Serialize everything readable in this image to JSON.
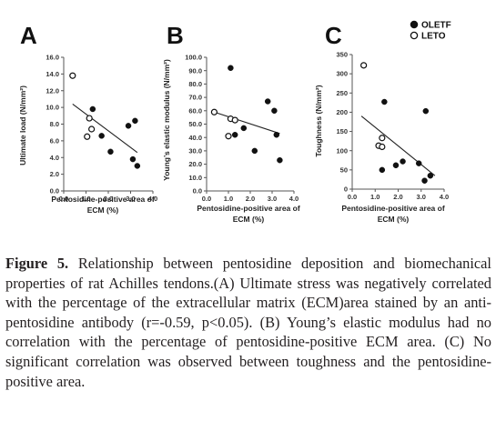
{
  "caption": {
    "label": "Figure 5.",
    "text": "Relationship between pentosidine deposition and biomechanical properties of rat Achilles tendons.(A) Ultimate stress was negatively correlated with the percentage of the extracellular matrix (ECM)area stained by an anti-pentosidine antibody (r=-0.59, p<0.05). (B) Young’s elastic modulus had no correlation with the percentage of pentosidine-positive ECM area. (C) No significant correlation was observed between toughness and the pentosidine-positive area."
  },
  "legend": [
    {
      "label": "OLETF",
      "marker": "filled"
    },
    {
      "label": "LETO",
      "marker": "open"
    }
  ],
  "colors": {
    "filled": "#111111",
    "trend": "#222222"
  },
  "chart_data": [
    {
      "panel": "A",
      "type": "scatter",
      "xlabel": "Pentosidine-positive area of ECM (%)",
      "ylabel": "Ultimate load (N/mm²)",
      "xlim": [
        0,
        4
      ],
      "ylim": [
        0,
        16
      ],
      "xticks": [
        "0.0",
        "1.0",
        "2.0",
        "3.0",
        "4.0"
      ],
      "yticks": [
        "0.0",
        "2.0",
        "4.0",
        "6.0",
        "8.0",
        "10.0",
        "12.0",
        "14.0",
        "16.0"
      ],
      "series": [
        {
          "name": "OLETF",
          "marker": "filled",
          "points": [
            [
              1.3,
              9.8
            ],
            [
              1.7,
              6.6
            ],
            [
              2.1,
              4.7
            ],
            [
              2.9,
              7.8
            ],
            [
              3.2,
              8.4
            ],
            [
              3.1,
              3.8
            ],
            [
              3.3,
              3.0
            ]
          ]
        },
        {
          "name": "LETO",
          "marker": "open",
          "points": [
            [
              0.4,
              13.8
            ],
            [
              1.15,
              8.7
            ],
            [
              1.05,
              6.5
            ],
            [
              1.25,
              7.4
            ]
          ]
        }
      ],
      "trend": [
        [
          0.4,
          10.4
        ],
        [
          3.3,
          4.6
        ]
      ]
    },
    {
      "panel": "B",
      "type": "scatter",
      "xlabel": "Pentosidine-positive area of ECM (%)",
      "ylabel": "Young’s elastic modulus (N/mm²)",
      "xlim": [
        0,
        4
      ],
      "ylim": [
        0,
        100
      ],
      "xticks": [
        "0.0",
        "1.0",
        "2.0",
        "3.0",
        "4.0"
      ],
      "yticks": [
        "0.0",
        "10.0",
        "20.0",
        "30.0",
        "40.0",
        "50.0",
        "60.0",
        "70.0",
        "80.0",
        "90.0",
        "100.0"
      ],
      "series": [
        {
          "name": "OLETF",
          "marker": "filled",
          "points": [
            [
              1.1,
              92
            ],
            [
              1.3,
              42
            ],
            [
              1.7,
              47
            ],
            [
              2.2,
              30
            ],
            [
              2.8,
              67
            ],
            [
              3.1,
              60
            ],
            [
              3.2,
              42
            ],
            [
              3.35,
              23
            ]
          ]
        },
        {
          "name": "LETO",
          "marker": "open",
          "points": [
            [
              0.35,
              59
            ],
            [
              1.1,
              54
            ],
            [
              1.3,
              53
            ],
            [
              1.0,
              41
            ]
          ]
        }
      ],
      "trend": [
        [
          0.35,
          59
        ],
        [
          3.35,
          43
        ]
      ]
    },
    {
      "panel": "C",
      "type": "scatter",
      "xlabel": "Pentosidine-positive area of ECM (%)",
      "ylabel": "Toughness (N/mm²)",
      "xlim": [
        0,
        4
      ],
      "ylim": [
        0,
        350
      ],
      "xticks": [
        "0.0",
        "1.0",
        "2.0",
        "3.0",
        "4.0"
      ],
      "yticks": [
        "0",
        "50",
        "100",
        "150",
        "200",
        "250",
        "300",
        "350"
      ],
      "series": [
        {
          "name": "OLETF",
          "marker": "filled",
          "points": [
            [
              1.4,
              227
            ],
            [
              1.3,
              50
            ],
            [
              1.9,
              62
            ],
            [
              2.2,
              72
            ],
            [
              2.9,
              67
            ],
            [
              3.2,
              203
            ],
            [
              3.15,
              22
            ],
            [
              3.4,
              35
            ]
          ]
        },
        {
          "name": "LETO",
          "marker": "open",
          "points": [
            [
              0.5,
              322
            ],
            [
              1.15,
              113
            ],
            [
              1.3,
              110
            ],
            [
              1.3,
              133
            ]
          ]
        }
      ],
      "trend": [
        [
          0.4,
          190
        ],
        [
          3.6,
          35
        ]
      ]
    }
  ]
}
